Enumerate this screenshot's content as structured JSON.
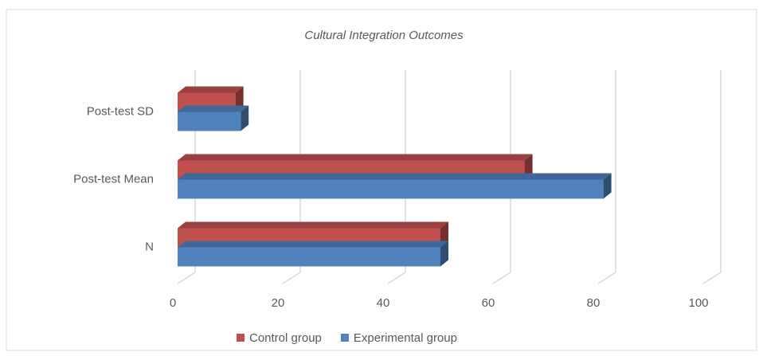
{
  "chart_data": {
    "type": "bar3d",
    "title": "Cultural Integration Outcomes",
    "categories": [
      "Post-test SD",
      "Post-test Mean",
      "N"
    ],
    "series": [
      {
        "name": "Control group",
        "color": "#c0504d",
        "values": [
          11,
          66,
          50
        ]
      },
      {
        "name": "Experimental group",
        "color": "#4f81bd",
        "values": [
          12,
          81,
          50
        ]
      }
    ],
    "xlim": [
      0,
      100
    ],
    "xticks": [
      0,
      20,
      40,
      60,
      80,
      100
    ],
    "grid": true,
    "legend": "bottom"
  }
}
